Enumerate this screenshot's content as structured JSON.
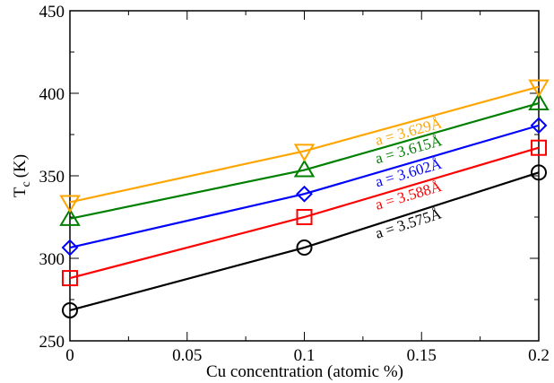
{
  "chart_data": {
    "type": "line",
    "title": "",
    "xlabel": "Cu concentration (atomic %)",
    "ylabel_main": "T",
    "ylabel_sub": "c",
    "ylabel_unit": "(K)",
    "xlim": [
      0,
      0.2
    ],
    "ylim": [
      250,
      450
    ],
    "x_ticks": [
      0,
      0.05,
      0.1,
      0.15,
      0.2
    ],
    "x_tick_labels": [
      "0",
      "0.05",
      "0.1",
      "0.15",
      "0.2"
    ],
    "y_ticks": [
      250,
      300,
      350,
      400,
      450
    ],
    "y_tick_labels": [
      "250",
      "300",
      "350",
      "400",
      "450"
    ],
    "x": [
      0,
      0.1,
      0.2
    ],
    "series": [
      {
        "name": "a = 3.575Å",
        "color": "#000000",
        "marker": "circle",
        "values": [
          268.5,
          306.5,
          352
        ]
      },
      {
        "name": "a = 3.588Å",
        "color": "#ff0000",
        "marker": "square",
        "values": [
          288,
          325,
          367
        ]
      },
      {
        "name": "a = 3.602Å",
        "color": "#0000ff",
        "marker": "diamond",
        "values": [
          306.5,
          339,
          380.5
        ]
      },
      {
        "name": "a = 3.615Å",
        "color": "#008000",
        "marker": "triangle-up",
        "values": [
          324,
          353.5,
          394
        ]
      },
      {
        "name": "a = 3.629Å",
        "color": "#ffa500",
        "marker": "triangle-down",
        "values": [
          334,
          365,
          404
        ]
      }
    ],
    "grid": false,
    "legend": "inline-labels"
  }
}
